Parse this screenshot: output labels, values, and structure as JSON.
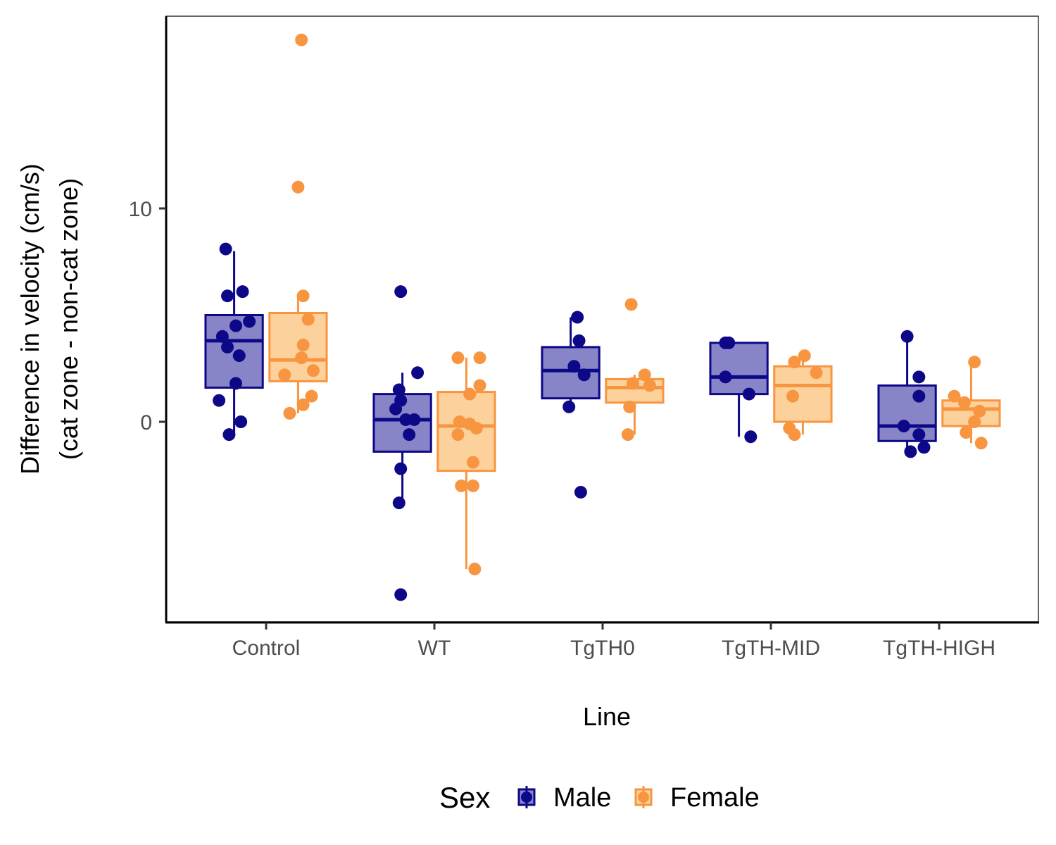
{
  "chart_data": {
    "type": "boxplot",
    "xlabel": "Line",
    "ylabel_lines": [
      "Difference in velocity (cm/s)",
      "(cat zone - non-cat zone)"
    ],
    "categories": [
      "Control",
      "WT",
      "TgTH0",
      "TgTH-MID",
      "TgTH-HIGH"
    ],
    "yticks": [
      0,
      10
    ],
    "ylim": [
      -9.3,
      19.2
    ],
    "legend": {
      "title": "Sex",
      "position": "bottom"
    },
    "grid": false,
    "series": [
      {
        "name": "Male",
        "color": "#0d0887",
        "fill": "#8884c8",
        "boxes": [
          {
            "q1": 1.6,
            "median": 3.8,
            "q3": 5.0,
            "lo": -0.6,
            "hi": 8.0
          },
          {
            "q1": -1.4,
            "median": 0.1,
            "q3": 1.3,
            "lo": -3.8,
            "hi": 2.3
          },
          {
            "q1": 1.1,
            "median": 2.4,
            "q3": 3.5,
            "lo": 0.7,
            "hi": 4.9
          },
          {
            "q1": 1.3,
            "median": 2.1,
            "q3": 3.7,
            "lo": -0.7,
            "hi": 3.7
          },
          {
            "q1": -0.9,
            "median": -0.2,
            "q3": 1.7,
            "lo": -1.4,
            "hi": 3.9
          }
        ],
        "points": [
          [
            {
              "dx": -0.24,
              "y": 8.1
            },
            {
              "dx": -0.23,
              "y": 5.9
            },
            {
              "dx": -0.14,
              "y": 6.1
            },
            {
              "dx": -0.26,
              "y": 4.0
            },
            {
              "dx": -0.18,
              "y": 4.5
            },
            {
              "dx": -0.1,
              "y": 4.7
            },
            {
              "dx": -0.23,
              "y": 3.5
            },
            {
              "dx": -0.16,
              "y": 3.1
            },
            {
              "dx": -0.18,
              "y": 1.8
            },
            {
              "dx": -0.28,
              "y": 1.0
            },
            {
              "dx": -0.15,
              "y": 0.0
            },
            {
              "dx": -0.22,
              "y": -0.6
            }
          ],
          [
            {
              "dx": -0.2,
              "y": 6.1
            },
            {
              "dx": -0.1,
              "y": 2.3
            },
            {
              "dx": -0.21,
              "y": 1.5
            },
            {
              "dx": -0.2,
              "y": 1.0
            },
            {
              "dx": -0.23,
              "y": 0.6
            },
            {
              "dx": -0.17,
              "y": 0.1
            },
            {
              "dx": -0.12,
              "y": 0.1
            },
            {
              "dx": -0.15,
              "y": -0.6
            },
            {
              "dx": -0.2,
              "y": -2.2
            },
            {
              "dx": -0.21,
              "y": -3.8
            },
            {
              "dx": -0.2,
              "y": -8.1
            }
          ],
          [
            {
              "dx": -0.15,
              "y": 4.9
            },
            {
              "dx": -0.14,
              "y": 3.8
            },
            {
              "dx": -0.17,
              "y": 2.6
            },
            {
              "dx": -0.11,
              "y": 2.2
            },
            {
              "dx": -0.2,
              "y": 0.7
            },
            {
              "dx": -0.13,
              "y": -3.3
            }
          ],
          [
            {
              "dx": -0.27,
              "y": 3.7
            },
            {
              "dx": -0.25,
              "y": 3.7
            },
            {
              "dx": -0.27,
              "y": 2.1
            },
            {
              "dx": -0.13,
              "y": 1.3
            },
            {
              "dx": -0.12,
              "y": -0.7
            }
          ],
          [
            {
              "dx": -0.19,
              "y": 4.0
            },
            {
              "dx": -0.12,
              "y": 2.1
            },
            {
              "dx": -0.12,
              "y": 1.2
            },
            {
              "dx": -0.21,
              "y": -0.2
            },
            {
              "dx": -0.12,
              "y": -0.6
            },
            {
              "dx": -0.09,
              "y": -1.2
            },
            {
              "dx": -0.17,
              "y": -1.4
            }
          ]
        ]
      },
      {
        "name": "Female",
        "color": "#f89540",
        "fill": "#fcd19b",
        "boxes": [
          {
            "q1": 1.9,
            "median": 2.9,
            "q3": 5.1,
            "lo": 0.4,
            "hi": 5.9
          },
          {
            "q1": -2.3,
            "median": -0.2,
            "q3": 1.4,
            "lo": -6.9,
            "hi": 3.0
          },
          {
            "q1": 0.9,
            "median": 1.6,
            "q3": 2.0,
            "lo": -0.6,
            "hi": 2.2
          },
          {
            "q1": 0.0,
            "median": 1.7,
            "q3": 2.6,
            "lo": -0.6,
            "hi": 3.1
          },
          {
            "q1": -0.2,
            "median": 0.6,
            "q3": 1.0,
            "lo": -1.0,
            "hi": 2.8
          }
        ],
        "points": [
          [
            {
              "dx": 0.21,
              "y": 17.9
            },
            {
              "dx": 0.19,
              "y": 11.0
            },
            {
              "dx": 0.22,
              "y": 5.9
            },
            {
              "dx": 0.25,
              "y": 4.8
            },
            {
              "dx": 0.22,
              "y": 3.6
            },
            {
              "dx": 0.21,
              "y": 3.0
            },
            {
              "dx": 0.28,
              "y": 2.4
            },
            {
              "dx": 0.11,
              "y": 2.2
            },
            {
              "dx": 0.27,
              "y": 1.2
            },
            {
              "dx": 0.22,
              "y": 0.8
            },
            {
              "dx": 0.14,
              "y": 0.4
            }
          ],
          [
            {
              "dx": 0.14,
              "y": 3.0
            },
            {
              "dx": 0.27,
              "y": 3.0
            },
            {
              "dx": 0.27,
              "y": 1.7
            },
            {
              "dx": 0.21,
              "y": 1.3
            },
            {
              "dx": 0.15,
              "y": 0.0
            },
            {
              "dx": 0.21,
              "y": -0.1
            },
            {
              "dx": 0.25,
              "y": -0.3
            },
            {
              "dx": 0.14,
              "y": -0.6
            },
            {
              "dx": 0.23,
              "y": -1.9
            },
            {
              "dx": 0.16,
              "y": -3.0
            },
            {
              "dx": 0.23,
              "y": -3.0
            },
            {
              "dx": 0.24,
              "y": -6.9
            }
          ],
          [
            {
              "dx": 0.17,
              "y": 5.5
            },
            {
              "dx": 0.25,
              "y": 2.2
            },
            {
              "dx": 0.18,
              "y": 1.8
            },
            {
              "dx": 0.28,
              "y": 1.7
            },
            {
              "dx": 0.16,
              "y": 0.7
            },
            {
              "dx": 0.15,
              "y": -0.6
            }
          ],
          [
            {
              "dx": 0.2,
              "y": 3.1
            },
            {
              "dx": 0.14,
              "y": 2.8
            },
            {
              "dx": 0.27,
              "y": 2.3
            },
            {
              "dx": 0.13,
              "y": 1.2
            },
            {
              "dx": 0.11,
              "y": -0.3
            },
            {
              "dx": 0.14,
              "y": -0.6
            }
          ],
          [
            {
              "dx": 0.21,
              "y": 2.8
            },
            {
              "dx": 0.09,
              "y": 1.2
            },
            {
              "dx": 0.15,
              "y": 0.9
            },
            {
              "dx": 0.24,
              "y": 0.5
            },
            {
              "dx": 0.21,
              "y": 0.0
            },
            {
              "dx": 0.16,
              "y": -0.5
            },
            {
              "dx": 0.25,
              "y": -1.0
            }
          ]
        ]
      }
    ]
  }
}
